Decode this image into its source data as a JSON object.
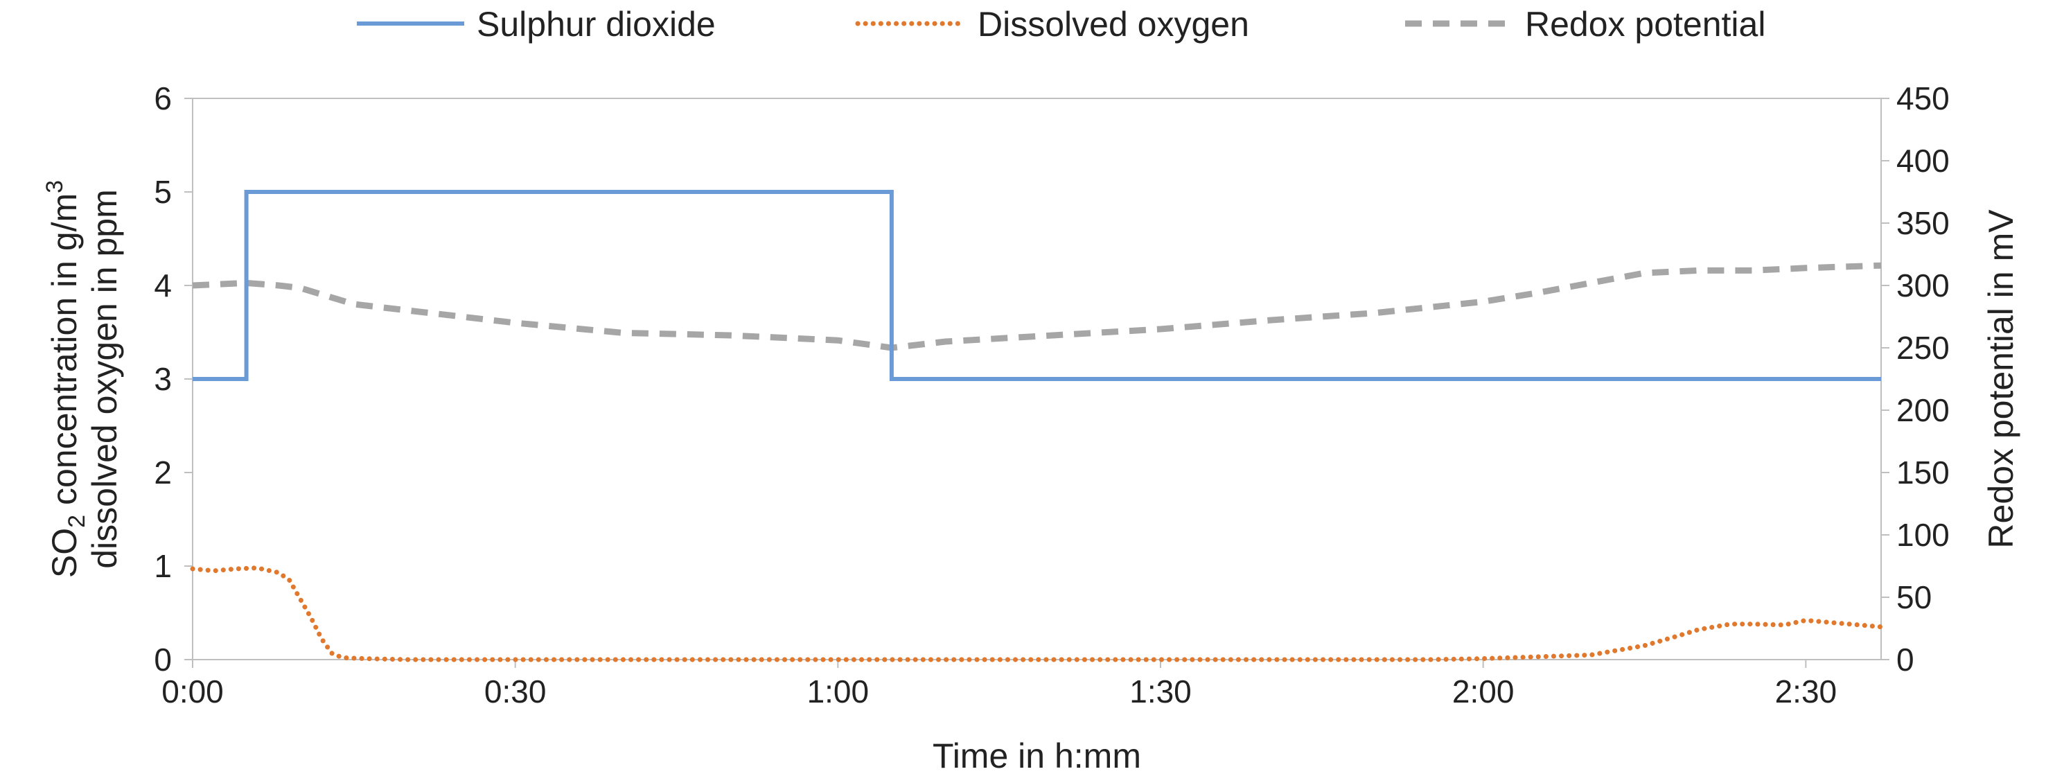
{
  "chart_data": {
    "type": "line",
    "xlabel": "Time in h:mm",
    "ylabel_left_line1": "SO2 concentration in g/m3",
    "ylabel_left_line2": "dissolved oxygen in ppm",
    "ylabel_right": "Redox potential in mV",
    "xlim_minutes": [
      0,
      157
    ],
    "ylim_left": [
      0,
      6
    ],
    "ylim_right": [
      0,
      450
    ],
    "x_ticks": [
      "0:00",
      "0:30",
      "1:00",
      "1:30",
      "2:00",
      "2:30"
    ],
    "y_left_ticks": [
      "0",
      "1",
      "2",
      "3",
      "4",
      "5",
      "6"
    ],
    "y_right_ticks": [
      "0",
      "50",
      "100",
      "150",
      "200",
      "250",
      "300",
      "350",
      "400",
      "450"
    ],
    "legend_position": "top",
    "grid": false,
    "series": [
      {
        "name": "Sulphur dioxide",
        "axis": "left",
        "color": "#6a9bd6",
        "style": "solid",
        "x": [
          0,
          5,
          5,
          65,
          65,
          157
        ],
        "y": [
          3,
          3,
          5,
          5,
          3,
          3
        ]
      },
      {
        "name": "Dissolved oxygen",
        "axis": "left",
        "color": "#e0792e",
        "style": "dotted",
        "x": [
          0,
          2,
          4,
          6,
          8,
          9,
          10,
          11,
          12,
          13,
          14,
          16,
          20,
          40,
          60,
          80,
          100,
          115,
          120,
          130,
          135,
          138,
          140,
          143,
          145,
          148,
          150,
          152,
          155,
          157
        ],
        "y": [
          0.97,
          0.95,
          0.97,
          0.98,
          0.93,
          0.85,
          0.65,
          0.45,
          0.22,
          0.06,
          0.02,
          0.01,
          0.0,
          0.0,
          0.0,
          0.0,
          0.0,
          0.0,
          0.01,
          0.05,
          0.15,
          0.25,
          0.32,
          0.38,
          0.38,
          0.37,
          0.42,
          0.4,
          0.37,
          0.35
        ]
      },
      {
        "name": "Redox potential",
        "axis": "right",
        "color": "#a6a6a6",
        "style": "dashed",
        "x": [
          0,
          5,
          8,
          10,
          15,
          20,
          25,
          30,
          40,
          50,
          60,
          65,
          70,
          80,
          90,
          100,
          110,
          120,
          125,
          130,
          135,
          140,
          145,
          150,
          157
        ],
        "y": [
          300,
          302,
          300,
          298,
          285,
          280,
          275,
          270,
          262,
          260,
          256,
          250,
          255,
          260,
          265,
          272,
          278,
          287,
          294,
          302,
          310,
          312,
          312,
          314,
          316
        ]
      }
    ]
  }
}
